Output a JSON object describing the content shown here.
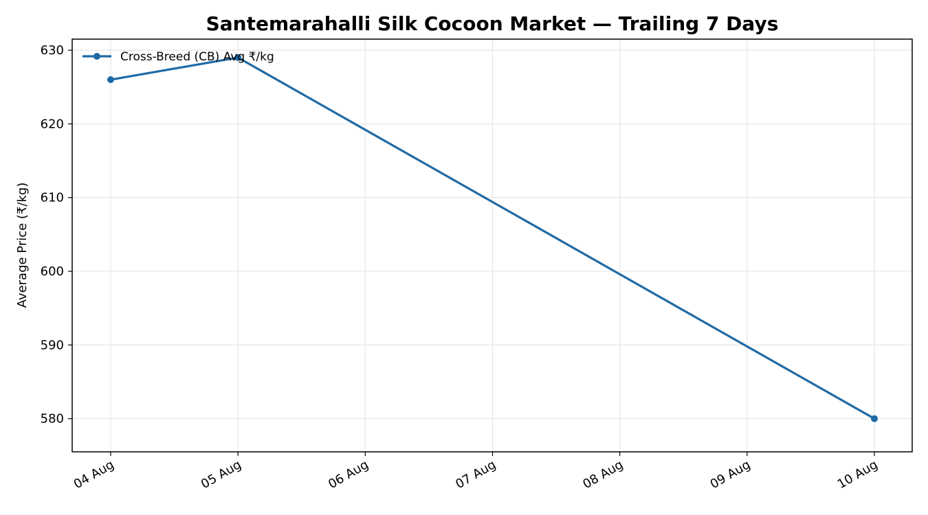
{
  "chart_data": {
    "type": "line",
    "title": "Santemarahalli Silk Cocoon Market — Trailing 7 Days",
    "xlabel": "",
    "ylabel": "Average Price (₹/kg)",
    "x_tick_labels": [
      "04 Aug",
      "05 Aug",
      "06 Aug",
      "07 Aug",
      "08 Aug",
      "09 Aug",
      "10 Aug"
    ],
    "y_ticks": [
      580,
      590,
      600,
      610,
      620,
      630
    ],
    "ylim": [
      575.5,
      631.5
    ],
    "grid": true,
    "legend_position": "top-left",
    "series": [
      {
        "name": "Cross-Breed (CB) Avg ₹/kg",
        "color": "#1f6aa5",
        "points": [
          {
            "x": "04 Aug",
            "y": 626
          },
          {
            "x": "05 Aug",
            "y": 629
          },
          {
            "x": "10 Aug",
            "y": 580
          }
        ]
      }
    ]
  }
}
